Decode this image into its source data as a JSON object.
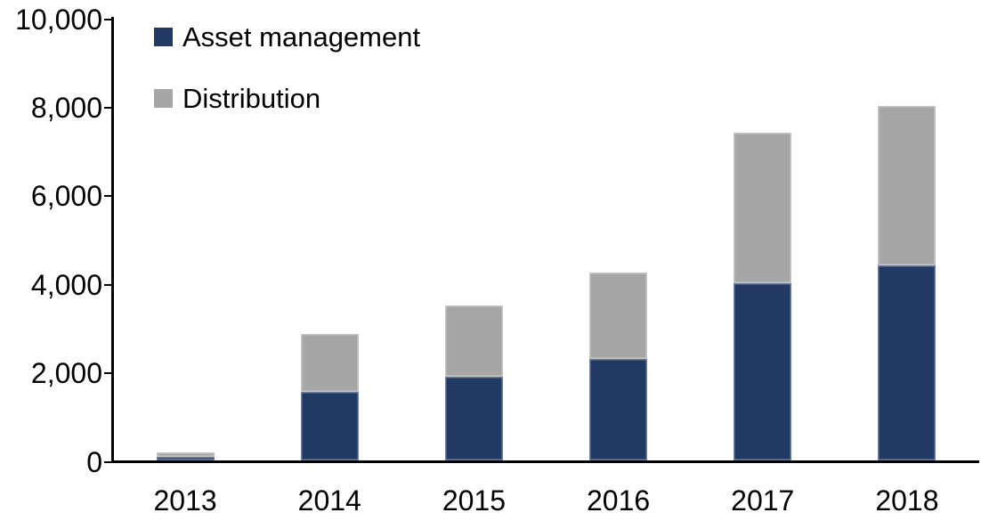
{
  "chart_data": {
    "type": "bar",
    "stacked": true,
    "title": "",
    "xlabel": "",
    "ylabel": "",
    "categories": [
      "2013",
      "2014",
      "2015",
      "2016",
      "2017",
      "2018"
    ],
    "series": [
      {
        "name": "Asset management",
        "color": "#223A63",
        "values": [
          80,
          1550,
          1900,
          2300,
          4000,
          4400
        ]
      },
      {
        "name": "Distribution",
        "color": "#A6A6A6",
        "values": [
          110,
          1300,
          1600,
          1950,
          3400,
          3600
        ]
      }
    ],
    "totals": [
      190,
      2850,
      3500,
      4250,
      7400,
      8000
    ],
    "ylim": [
      0,
      10000
    ],
    "yticks": [
      0,
      2000,
      4000,
      6000,
      8000,
      10000
    ],
    "ytick_labels": [
      "0",
      "2,000",
      "4,000",
      "6,000",
      "8,000",
      "10,000"
    ],
    "grid": false,
    "legend_position": "top-left",
    "axis_color": "#000000",
    "background_color": "#FFFFFF"
  }
}
